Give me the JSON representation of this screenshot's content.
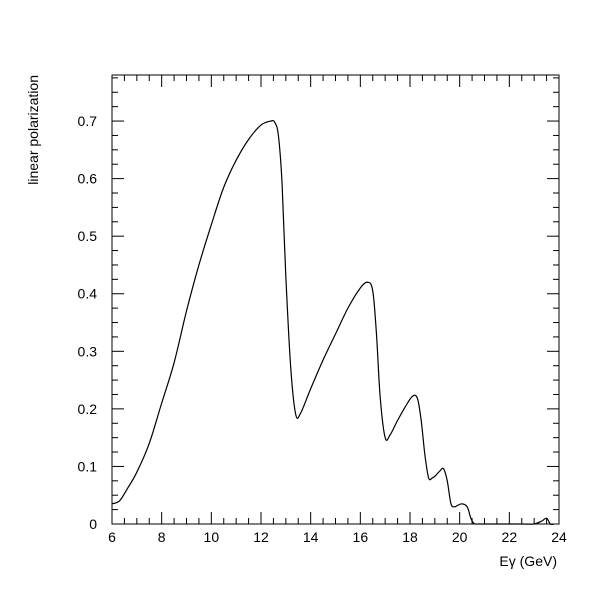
{
  "chart_data": {
    "type": "line",
    "title": "",
    "xlabel": "Eγ (GeV)",
    "ylabel": "linear polarization",
    "xlim": [
      6,
      24
    ],
    "ylim": [
      0,
      0.78
    ],
    "grid": false,
    "x_major_ticks": [
      6,
      8,
      10,
      12,
      14,
      16,
      18,
      20,
      22,
      24
    ],
    "x_tick_labels": [
      "6",
      "8",
      "10",
      "12",
      "14",
      "16",
      "18",
      "20",
      "22",
      "24"
    ],
    "y_major_ticks": [
      0,
      0.1,
      0.2,
      0.3,
      0.4,
      0.5,
      0.6,
      0.7
    ],
    "y_tick_labels": [
      "0",
      "0.1",
      "0.2",
      "0.3",
      "0.4",
      "0.5",
      "0.6",
      "0.7"
    ],
    "series": [
      {
        "x": [
          6.0,
          6.3,
          6.6,
          7.0,
          7.5,
          8.0,
          8.5,
          9.0,
          9.5,
          10.0,
          10.5,
          11.0,
          11.5,
          12.0,
          12.4,
          12.55,
          12.7,
          12.85,
          13.0,
          13.2,
          13.4,
          13.6,
          14.0,
          14.5,
          15.0,
          15.5,
          16.0,
          16.3,
          16.5,
          16.65,
          16.8,
          17.0,
          17.2,
          17.5,
          17.8,
          18.1,
          18.3,
          18.45,
          18.6,
          18.75,
          18.9,
          19.05,
          19.2,
          19.35,
          19.5,
          19.65,
          19.8,
          19.9,
          20.1,
          20.3,
          20.45,
          20.55,
          20.65,
          20.8,
          21.5,
          22.5,
          23.0,
          23.3,
          23.5,
          23.65,
          23.8
        ],
        "y": [
          0.035,
          0.04,
          0.06,
          0.09,
          0.14,
          0.21,
          0.28,
          0.37,
          0.45,
          0.52,
          0.585,
          0.632,
          0.668,
          0.693,
          0.7,
          0.698,
          0.675,
          0.59,
          0.43,
          0.27,
          0.19,
          0.193,
          0.235,
          0.285,
          0.33,
          0.375,
          0.41,
          0.42,
          0.405,
          0.33,
          0.22,
          0.15,
          0.155,
          0.18,
          0.203,
          0.222,
          0.218,
          0.18,
          0.12,
          0.08,
          0.08,
          0.085,
          0.092,
          0.096,
          0.075,
          0.035,
          0.03,
          0.032,
          0.035,
          0.03,
          0.01,
          0.002,
          0.0,
          0.0,
          0.0,
          0.0,
          0.0,
          0.005,
          0.01,
          0.0,
          0.0
        ]
      }
    ]
  }
}
